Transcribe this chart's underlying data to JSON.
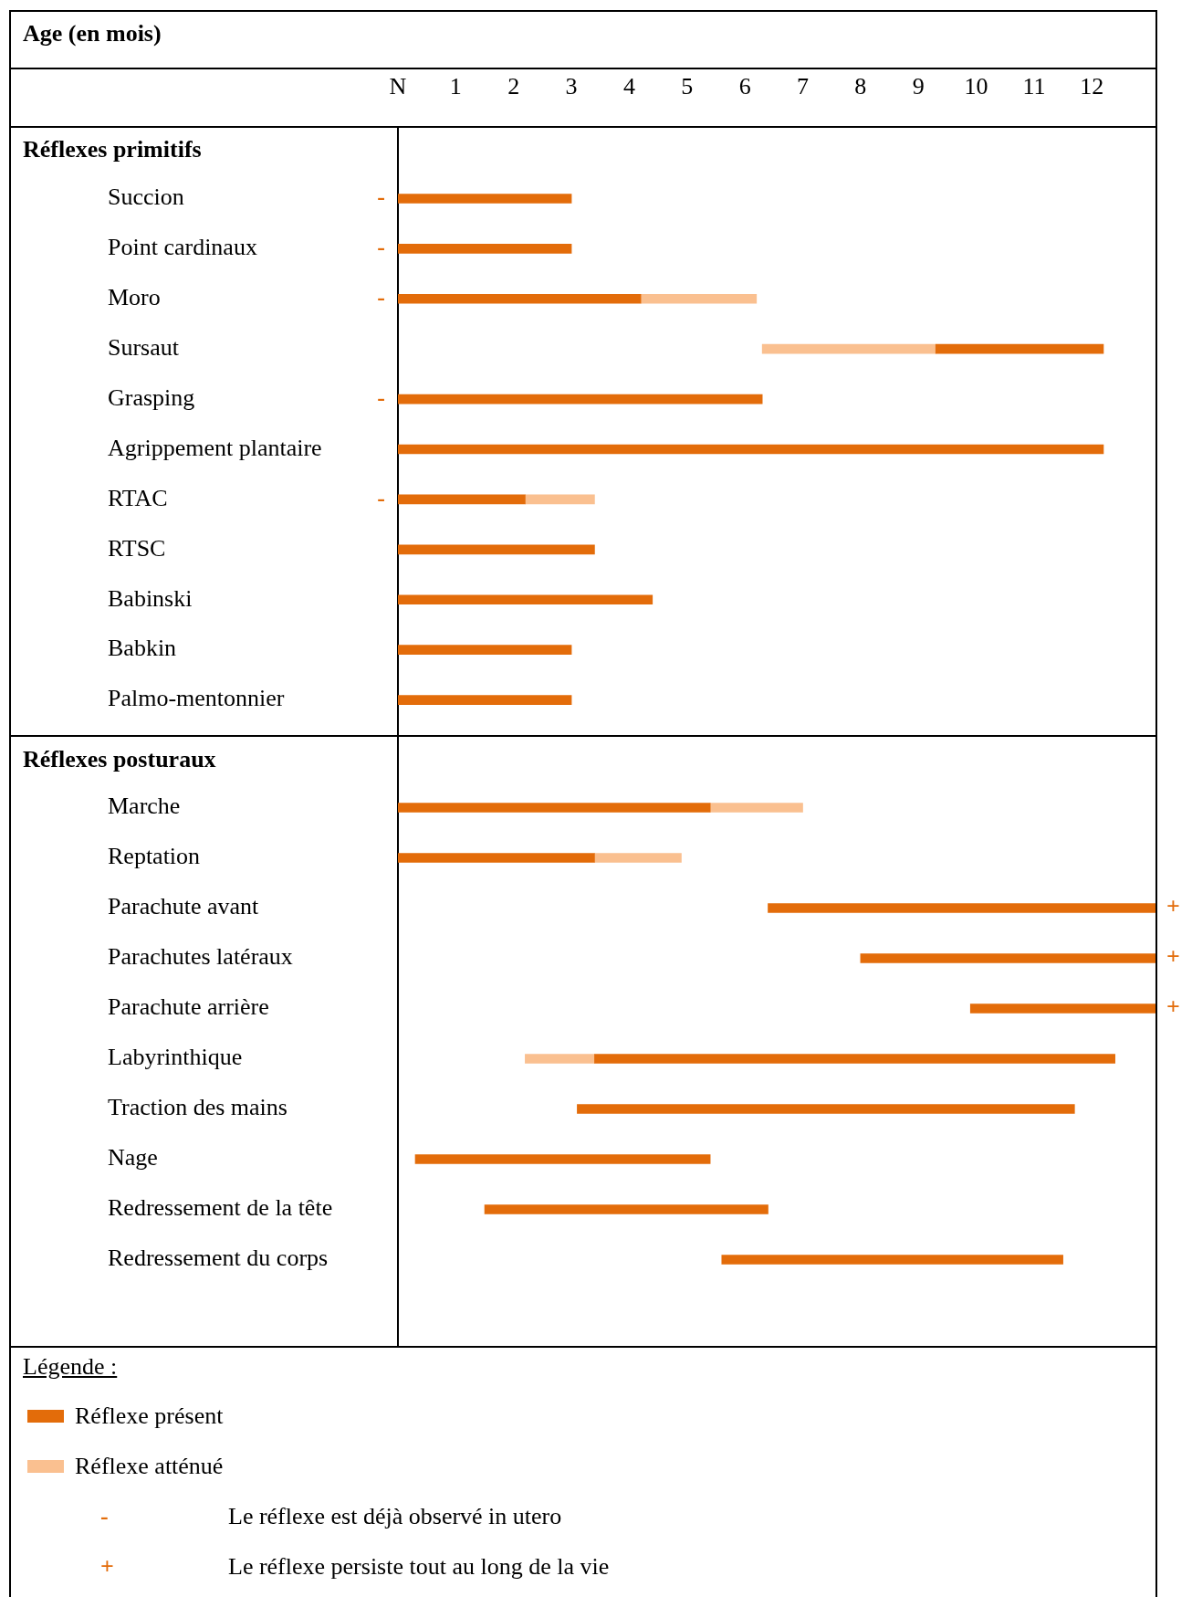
{
  "chart_data": [
    {
      "type": "bar",
      "orientation": "horizontal",
      "xlabel": "Age (en mois)",
      "title": "Réflexes primitifs",
      "categories": [
        "Succion",
        "Point cardinaux",
        "Moro",
        "Sursaut",
        "Grasping",
        "Agrippement plantaire",
        "RTAC",
        "RTSC",
        "Babinski",
        "Babkin",
        "Palmo-mentonnier"
      ],
      "series": [
        {
          "color": "#e36c0a",
          "base": [
            0,
            0,
            0,
            9.3,
            0,
            0,
            0,
            0,
            0,
            0,
            0
          ],
          "values": [
            3,
            3,
            4.2,
            2.9,
            6.3,
            12.2,
            2.2,
            3.4,
            4.4,
            3,
            3
          ],
          "value_labels": [
            "-",
            "-",
            "-",
            null,
            "-",
            null,
            "-",
            null,
            null,
            null,
            null
          ]
        },
        {
          "color": "#fac090",
          "base": [
            null,
            null,
            4.2,
            6.3,
            null,
            null,
            2.2,
            null,
            null,
            null,
            null
          ],
          "values": [
            null,
            null,
            2,
            3,
            null,
            null,
            1.2,
            null,
            null,
            null,
            null
          ]
        }
      ],
      "xlim": [
        0,
        13.1
      ],
      "xticks": [
        {
          "value": 0,
          "label": "N"
        },
        1,
        2,
        3,
        4,
        5,
        6,
        7,
        8,
        9,
        10,
        11,
        12
      ]
    },
    {
      "type": "bar",
      "orientation": "horizontal",
      "title": "Réflexes posturaux",
      "legend_title": "Légende :",
      "legend": "bottom",
      "tick_labels": "y",
      "categories": [
        "Marche",
        "Reptation",
        "Parachute avant",
        "Parachutes latéraux",
        "Parachute arrière",
        "Labyrinthique",
        "Traction des mains",
        "Nage",
        "Redressement de la tête",
        "Redressement du corps"
      ],
      "series": [
        {
          "name": "Réflexe présent",
          "color": "#e36c0a",
          "base": [
            0,
            0,
            6.4,
            8.0,
            9.9,
            3.4,
            3.1,
            0.3,
            1.5,
            5.6
          ],
          "values": [
            5.4,
            3.4,
            6.7,
            5.1,
            3.2,
            9.0,
            8.6,
            5.1,
            4.9,
            5.9
          ],
          "value_labels": [
            null,
            null,
            "+",
            "+",
            "+",
            null,
            null,
            null,
            null,
            null
          ]
        },
        {
          "name": "Réflexe atténué",
          "color": "#fac090",
          "base": [
            5.4,
            3.4,
            null,
            null,
            null,
            2.2,
            null,
            null,
            null,
            null
          ],
          "values": [
            1.6,
            1.5,
            null,
            null,
            null,
            1.2,
            null,
            null,
            null,
            null
          ]
        }
      ],
      "xlim": [
        0,
        13.1
      ],
      "annotations": [
        "-",
        "Le réflexe est déjà observé in utero",
        "+",
        "Le réflexe persiste tout au long de la vie"
      ]
    }
  ]
}
